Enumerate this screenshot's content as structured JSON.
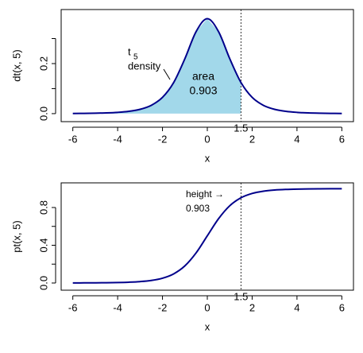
{
  "chart_data": [
    {
      "type": "line",
      "ylabel": "dt(x, 5)",
      "xlabel": "x",
      "xlim": [
        -6.52,
        6.52
      ],
      "ylim": [
        -0.032,
        0.416
      ],
      "xticks": [
        -6,
        -4,
        -2,
        0,
        2,
        4,
        6
      ],
      "yticks": [
        {
          "value": 0,
          "label": "0.0"
        },
        {
          "value": 0.1,
          "label": null
        },
        {
          "value": 0.2,
          "label": "0.2"
        },
        {
          "value": 0.3,
          "label": null
        }
      ],
      "x": [
        -6,
        -5.5,
        -5,
        -4.5,
        -4,
        -3.5,
        -3,
        -2.5,
        -2,
        -1.5,
        -1,
        -0.5,
        0,
        0.5,
        1,
        1.5,
        2,
        2.5,
        3,
        3.5,
        4,
        4.5,
        5,
        5.5,
        6
      ],
      "series": [
        {
          "color": "#00008b",
          "values": [
            0.00069,
            0.00108,
            0.00176,
            0.00295,
            0.00512,
            0.00924,
            0.0173,
            0.0333,
            0.0651,
            0.1245,
            0.2197,
            0.3279,
            0.3796,
            0.3279,
            0.2197,
            0.1245,
            0.0651,
            0.0333,
            0.0173,
            0.00924,
            0.00512,
            0.00295,
            0.00176,
            0.00108,
            0.00069
          ]
        }
      ],
      "shade_color": "#a2d8ea",
      "vline": {
        "value": 1.5,
        "label": "1.5"
      },
      "annotations": [
        "t",
        "5",
        "density",
        "area",
        "0.903"
      ]
    },
    {
      "type": "line",
      "ylabel": "pt(x, 5)",
      "xlabel": "x",
      "xlim": [
        -6.52,
        6.52
      ],
      "ylim": [
        -0.076,
        1.061
      ],
      "xticks": [
        -6,
        -4,
        -2,
        0,
        2,
        4,
        6
      ],
      "yticks": [
        {
          "value": 0,
          "label": "0.0"
        },
        {
          "value": 0.2,
          "label": null
        },
        {
          "value": 0.4,
          "label": "0.4"
        },
        {
          "value": 0.6,
          "label": null
        },
        {
          "value": 0.8,
          "label": "0.8"
        }
      ],
      "x": [
        -6,
        -5.5,
        -5,
        -4.5,
        -4,
        -3.5,
        -3,
        -2.5,
        -2,
        -1.5,
        -1,
        -0.5,
        0,
        0.5,
        1,
        1.5,
        2,
        2.5,
        3,
        3.5,
        4,
        4.5,
        5,
        5.5,
        6
      ],
      "series": [
        {
          "color": "#00008b",
          "values": [
            0.0009,
            0.0014,
            0.0021,
            0.0032,
            0.0052,
            0.0087,
            0.015,
            0.0271,
            0.051,
            0.097,
            0.1816,
            0.3191,
            0.5,
            0.6809,
            0.8184,
            0.903,
            0.949,
            0.9729,
            0.985,
            0.9913,
            0.9948,
            0.9968,
            0.9979,
            0.9986,
            0.9991
          ]
        }
      ],
      "vline": {
        "value": 1.5,
        "label": "1.5"
      },
      "annotations": [
        "height →",
        "0.903"
      ]
    }
  ]
}
